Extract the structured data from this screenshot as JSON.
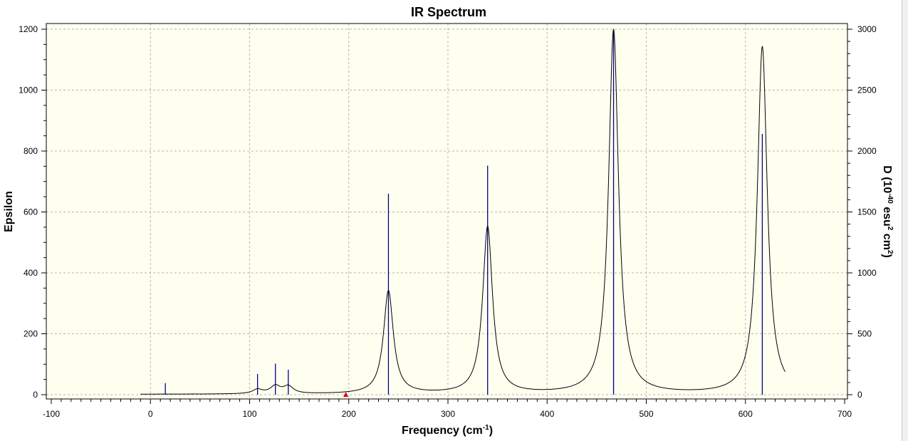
{
  "chart_data": {
    "type": "line",
    "title": "IR Spectrum",
    "xlabel": "Frequency (cm",
    "xlabel_sup": "-1",
    "xlabel_end": ")",
    "ylabel": "Epsilon",
    "y2label_parts": [
      "D (10",
      "-40",
      " esu",
      "2",
      " cm",
      "2",
      ")"
    ],
    "xlim": [
      -100,
      700
    ],
    "ylim": [
      0,
      1200
    ],
    "y2lim": [
      0,
      3000
    ],
    "xticks": [
      -100,
      0,
      100,
      200,
      300,
      400,
      500,
      600,
      700
    ],
    "yticks": [
      0,
      200,
      400,
      600,
      800,
      1000,
      1200
    ],
    "y2ticks": [
      0,
      500,
      1000,
      1500,
      2000,
      2500,
      3000
    ],
    "grid": true,
    "plot_background": "#fffff0",
    "colors": {
      "spectrum": "#000000",
      "sticks": "#00008b",
      "marker": "#e00000"
    },
    "spectrum": {
      "name": "Epsilon",
      "x_range": [
        -10,
        640
      ],
      "baseline": 1,
      "peaks": [
        {
          "x": 15,
          "height": 0.2,
          "width": 4
        },
        {
          "x": 108,
          "height": 14,
          "width": 6
        },
        {
          "x": 126,
          "height": 25,
          "width": 6
        },
        {
          "x": 139,
          "height": 24,
          "width": 6
        },
        {
          "x": 240,
          "height": 338,
          "width": 6
        },
        {
          "x": 340,
          "height": 548,
          "width": 6
        },
        {
          "x": 467,
          "height": 1195,
          "width": 6
        },
        {
          "x": 617,
          "height": 1140,
          "width": 6
        }
      ]
    },
    "sticks": {
      "name": "D (10-40 esu2 cm2)",
      "x": [
        15,
        108,
        126,
        139,
        240,
        340,
        467,
        617
      ],
      "values": [
        95,
        170,
        255,
        205,
        1650,
        1880,
        2990,
        2140
      ]
    },
    "marker": {
      "x": 197,
      "y": 0
    }
  }
}
